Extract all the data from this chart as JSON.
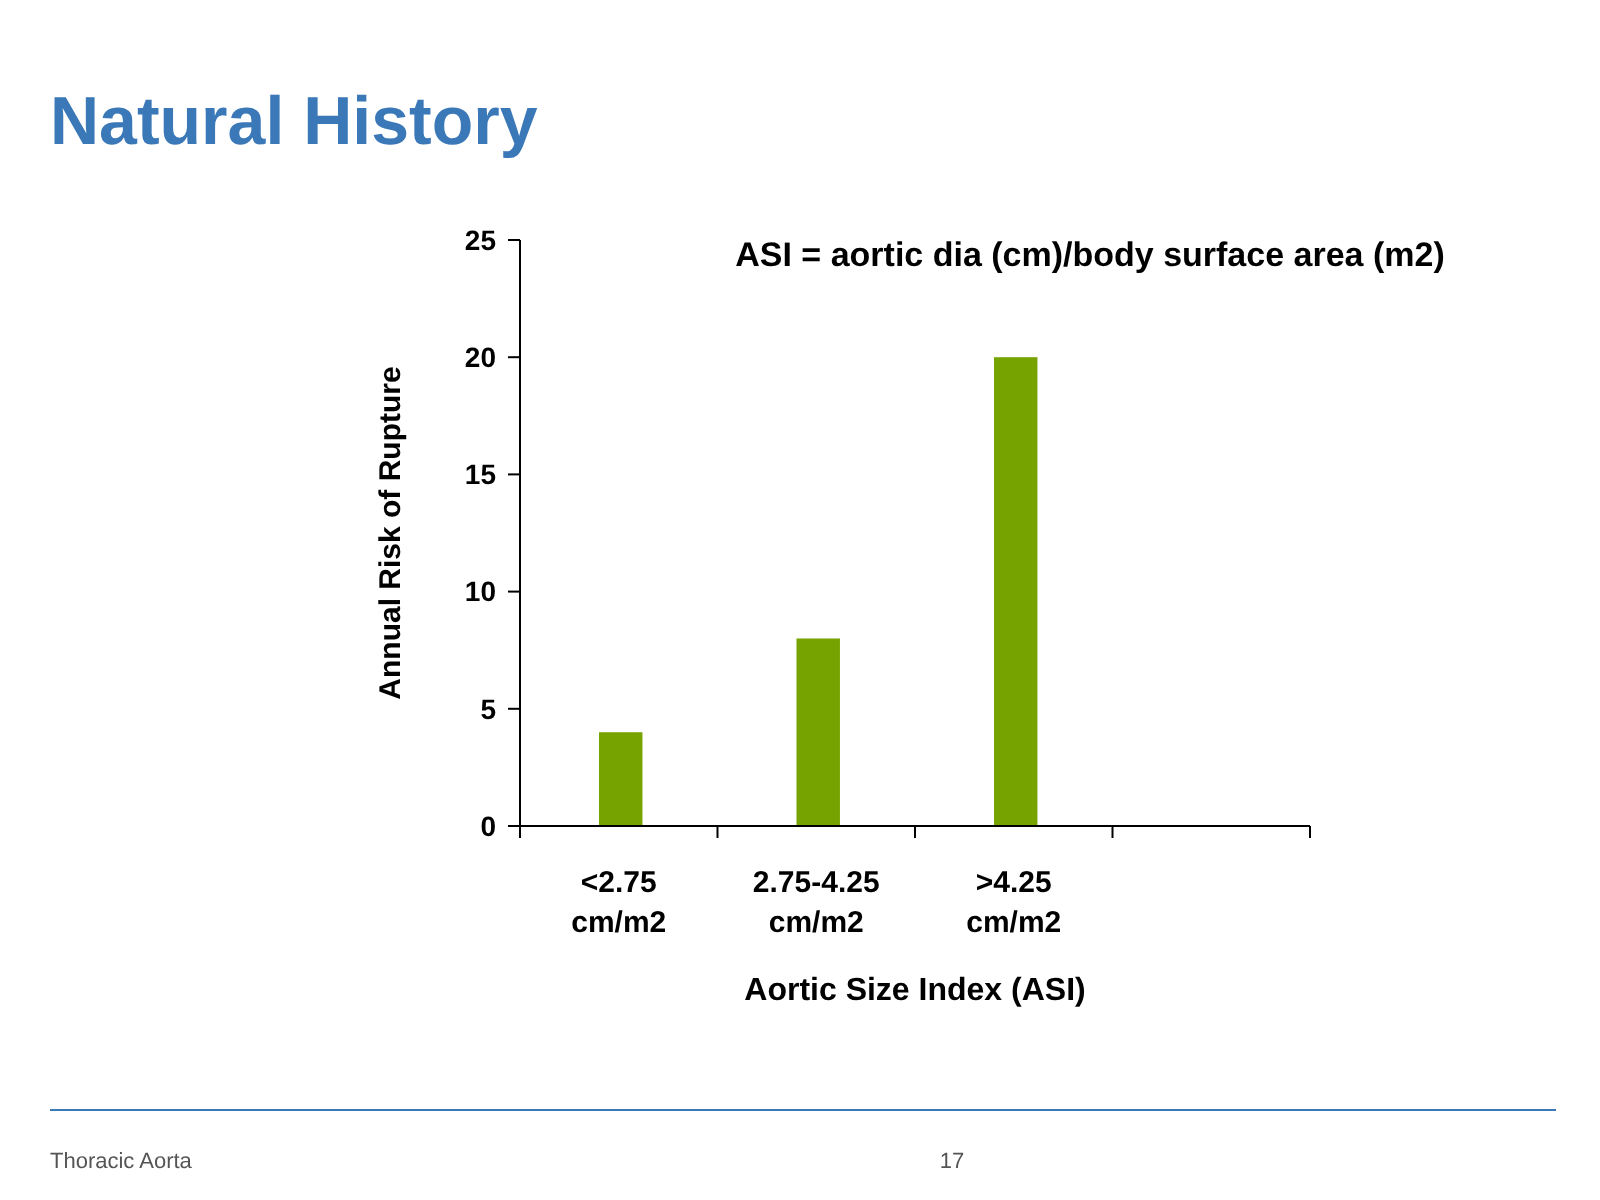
{
  "chart_data": {
    "type": "bar",
    "title": "Natural History",
    "xlabel": "Aortic Size Index (ASI)",
    "ylabel": "Annual Risk of Rupture",
    "categories": [
      "<2.75 cm/m2",
      "2.75-4.25 cm/m2",
      ">4.25 cm/m2",
      null
    ],
    "values": [
      4,
      8,
      20,
      null
    ],
    "color": "#77a300",
    "ylim": [
      0,
      25
    ],
    "yticks": [
      0,
      5,
      10,
      15,
      20,
      25
    ],
    "grid": false,
    "annotations": [
      "ASI = aortic dia (cm)/body surface area (m2)",
      "Thoracic Aorta",
      "17"
    ]
  }
}
